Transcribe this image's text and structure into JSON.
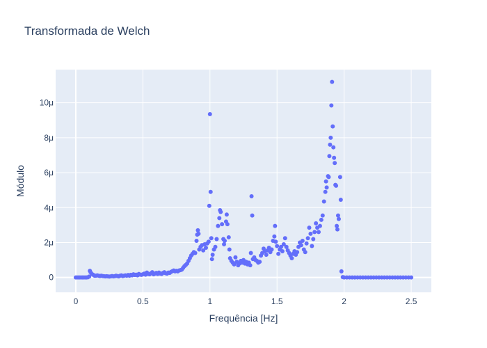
{
  "chart_data": {
    "type": "scatter",
    "title": "Transformada de Welch",
    "xlabel": "Frequência [Hz]",
    "ylabel": "Módulo",
    "xlim": [
      -0.15,
      2.65
    ],
    "ylim": [
      -0.85,
      11.9
    ],
    "y_unit_label": "μ",
    "grid": true,
    "legend": "none",
    "xticks": [
      {
        "value": 0,
        "label": "0"
      },
      {
        "value": 0.5,
        "label": "0.5"
      },
      {
        "value": 1,
        "label": "1"
      },
      {
        "value": 1.5,
        "label": "1.5"
      },
      {
        "value": 2,
        "label": "2"
      },
      {
        "value": 2.5,
        "label": "2.5"
      }
    ],
    "yticks": [
      {
        "value": 0,
        "label": "0"
      },
      {
        "value": 2,
        "label": "2μ"
      },
      {
        "value": 4,
        "label": "4μ"
      },
      {
        "value": 6,
        "label": "6μ"
      },
      {
        "value": 8,
        "label": "8μ"
      },
      {
        "value": 10,
        "label": "10μ"
      }
    ],
    "series": [
      {
        "color": "#636efa",
        "points": [
          [
            0.0,
            0.0
          ],
          [
            0.01,
            0.0
          ],
          [
            0.02,
            0.0
          ],
          [
            0.03,
            0.0
          ],
          [
            0.04,
            0.0
          ],
          [
            0.05,
            0.0
          ],
          [
            0.06,
            0.0
          ],
          [
            0.07,
            0.0
          ],
          [
            0.08,
            0.0
          ],
          [
            0.09,
            0.01
          ],
          [
            0.1,
            0.05
          ],
          [
            0.105,
            0.38
          ],
          [
            0.11,
            0.3
          ],
          [
            0.12,
            0.2
          ],
          [
            0.13,
            0.15
          ],
          [
            0.14,
            0.1
          ],
          [
            0.15,
            0.1
          ],
          [
            0.16,
            0.12
          ],
          [
            0.17,
            0.1
          ],
          [
            0.18,
            0.08
          ],
          [
            0.19,
            0.1
          ],
          [
            0.2,
            0.08
          ],
          [
            0.21,
            0.07
          ],
          [
            0.22,
            0.06
          ],
          [
            0.23,
            0.07
          ],
          [
            0.24,
            0.06
          ],
          [
            0.25,
            0.05
          ],
          [
            0.26,
            0.06
          ],
          [
            0.27,
            0.08
          ],
          [
            0.28,
            0.06
          ],
          [
            0.29,
            0.07
          ],
          [
            0.3,
            0.1
          ],
          [
            0.31,
            0.08
          ],
          [
            0.32,
            0.06
          ],
          [
            0.33,
            0.1
          ],
          [
            0.34,
            0.12
          ],
          [
            0.35,
            0.08
          ],
          [
            0.36,
            0.1
          ],
          [
            0.37,
            0.12
          ],
          [
            0.38,
            0.1
          ],
          [
            0.39,
            0.14
          ],
          [
            0.4,
            0.1
          ],
          [
            0.41,
            0.15
          ],
          [
            0.42,
            0.12
          ],
          [
            0.43,
            0.18
          ],
          [
            0.44,
            0.14
          ],
          [
            0.45,
            0.16
          ],
          [
            0.46,
            0.12
          ],
          [
            0.47,
            0.2
          ],
          [
            0.48,
            0.16
          ],
          [
            0.49,
            0.15
          ],
          [
            0.5,
            0.18
          ],
          [
            0.51,
            0.22
          ],
          [
            0.52,
            0.16
          ],
          [
            0.53,
            0.28
          ],
          [
            0.54,
            0.2
          ],
          [
            0.55,
            0.18
          ],
          [
            0.56,
            0.24
          ],
          [
            0.57,
            0.3
          ],
          [
            0.58,
            0.18
          ],
          [
            0.59,
            0.22
          ],
          [
            0.6,
            0.26
          ],
          [
            0.61,
            0.2
          ],
          [
            0.62,
            0.28
          ],
          [
            0.63,
            0.22
          ],
          [
            0.64,
            0.2
          ],
          [
            0.65,
            0.26
          ],
          [
            0.66,
            0.3
          ],
          [
            0.67,
            0.24
          ],
          [
            0.68,
            0.22
          ],
          [
            0.69,
            0.28
          ],
          [
            0.7,
            0.26
          ],
          [
            0.71,
            0.32
          ],
          [
            0.72,
            0.36
          ],
          [
            0.73,
            0.4
          ],
          [
            0.74,
            0.35
          ],
          [
            0.75,
            0.38
          ],
          [
            0.76,
            0.35
          ],
          [
            0.77,
            0.4
          ],
          [
            0.78,
            0.42
          ],
          [
            0.79,
            0.45
          ],
          [
            0.8,
            0.55
          ],
          [
            0.81,
            0.65
          ],
          [
            0.82,
            0.72
          ],
          [
            0.83,
            0.8
          ],
          [
            0.84,
            0.95
          ],
          [
            0.85,
            1.1
          ],
          [
            0.86,
            1.25
          ],
          [
            0.87,
            1.35
          ],
          [
            0.88,
            1.45
          ],
          [
            0.89,
            1.4
          ],
          [
            0.9,
            2.1
          ],
          [
            0.905,
            2.45
          ],
          [
            0.91,
            2.7
          ],
          [
            0.915,
            2.5
          ],
          [
            0.92,
            1.6
          ],
          [
            0.93,
            1.75
          ],
          [
            0.94,
            1.85
          ],
          [
            0.95,
            1.55
          ],
          [
            0.96,
            1.9
          ],
          [
            0.97,
            1.7
          ],
          [
            0.98,
            1.95
          ],
          [
            0.99,
            2.05
          ],
          [
            0.995,
            4.1
          ],
          [
            1.0,
            9.35
          ],
          [
            1.005,
            4.9
          ],
          [
            1.01,
            2.25
          ],
          [
            1.015,
            1.05
          ],
          [
            1.02,
            1.3
          ],
          [
            1.03,
            1.6
          ],
          [
            1.04,
            1.75
          ],
          [
            1.05,
            2.2
          ],
          [
            1.06,
            2.95
          ],
          [
            1.07,
            3.4
          ],
          [
            1.075,
            3.85
          ],
          [
            1.08,
            3.75
          ],
          [
            1.09,
            3.05
          ],
          [
            1.1,
            2.2
          ],
          [
            1.105,
            1.9
          ],
          [
            1.11,
            2.1
          ],
          [
            1.12,
            3.2
          ],
          [
            1.125,
            3.6
          ],
          [
            1.13,
            3.05
          ],
          [
            1.14,
            2.3
          ],
          [
            1.145,
            1.6
          ],
          [
            1.15,
            1.1
          ],
          [
            1.16,
            0.95
          ],
          [
            1.17,
            0.85
          ],
          [
            1.18,
            0.75
          ],
          [
            1.19,
            1.15
          ],
          [
            1.2,
            0.9
          ],
          [
            1.21,
            0.7
          ],
          [
            1.22,
            0.8
          ],
          [
            1.23,
            0.95
          ],
          [
            1.24,
            0.85
          ],
          [
            1.25,
            1.0
          ],
          [
            1.26,
            0.8
          ],
          [
            1.27,
            0.9
          ],
          [
            1.28,
            0.75
          ],
          [
            1.29,
            0.85
          ],
          [
            1.3,
            0.7
          ],
          [
            1.305,
            1.4
          ],
          [
            1.31,
            4.65
          ],
          [
            1.315,
            3.55
          ],
          [
            1.32,
            1.05
          ],
          [
            1.33,
            1.15
          ],
          [
            1.34,
            1.0
          ],
          [
            1.35,
            0.95
          ],
          [
            1.36,
            0.85
          ],
          [
            1.37,
            0.9
          ],
          [
            1.38,
            1.25
          ],
          [
            1.39,
            1.4
          ],
          [
            1.4,
            1.65
          ],
          [
            1.41,
            1.5
          ],
          [
            1.42,
            1.3
          ],
          [
            1.43,
            1.55
          ],
          [
            1.44,
            1.7
          ],
          [
            1.45,
            1.45
          ],
          [
            1.46,
            1.6
          ],
          [
            1.47,
            2.1
          ],
          [
            1.48,
            2.35
          ],
          [
            1.485,
            2.95
          ],
          [
            1.49,
            2.05
          ],
          [
            1.5,
            1.8
          ],
          [
            1.51,
            1.35
          ],
          [
            1.52,
            1.6
          ],
          [
            1.53,
            1.75
          ],
          [
            1.54,
            1.5
          ],
          [
            1.55,
            1.9
          ],
          [
            1.56,
            2.25
          ],
          [
            1.57,
            1.75
          ],
          [
            1.58,
            1.55
          ],
          [
            1.59,
            1.4
          ],
          [
            1.6,
            1.25
          ],
          [
            1.61,
            1.1
          ],
          [
            1.62,
            1.35
          ],
          [
            1.63,
            1.5
          ],
          [
            1.64,
            1.3
          ],
          [
            1.65,
            1.45
          ],
          [
            1.66,
            1.75
          ],
          [
            1.67,
            2.0
          ],
          [
            1.68,
            1.85
          ],
          [
            1.69,
            2.1
          ],
          [
            1.7,
            1.6
          ],
          [
            1.71,
            1.45
          ],
          [
            1.72,
            1.95
          ],
          [
            1.73,
            2.25
          ],
          [
            1.74,
            2.85
          ],
          [
            1.75,
            2.5
          ],
          [
            1.76,
            1.8
          ],
          [
            1.77,
            2.2
          ],
          [
            1.78,
            2.6
          ],
          [
            1.79,
            3.1
          ],
          [
            1.8,
            2.85
          ],
          [
            1.81,
            2.6
          ],
          [
            1.82,
            2.95
          ],
          [
            1.83,
            3.3
          ],
          [
            1.84,
            3.55
          ],
          [
            1.85,
            4.35
          ],
          [
            1.86,
            4.9
          ],
          [
            1.865,
            5.5
          ],
          [
            1.87,
            5.15
          ],
          [
            1.88,
            5.8
          ],
          [
            1.885,
            5.75
          ],
          [
            1.89,
            6.95
          ],
          [
            1.895,
            7.6
          ],
          [
            1.9,
            8.0
          ],
          [
            1.905,
            9.85
          ],
          [
            1.91,
            11.2
          ],
          [
            1.915,
            8.65
          ],
          [
            1.92,
            7.45
          ],
          [
            1.925,
            6.85
          ],
          [
            1.93,
            6.55
          ],
          [
            1.935,
            5.3
          ],
          [
            1.94,
            5.25
          ],
          [
            1.945,
            2.95
          ],
          [
            1.95,
            2.75
          ],
          [
            1.955,
            3.55
          ],
          [
            1.96,
            3.35
          ],
          [
            1.97,
            5.75
          ],
          [
            1.975,
            4.45
          ],
          [
            1.98,
            0.35
          ],
          [
            1.99,
            0.02
          ],
          [
            2.0,
            0.0
          ],
          [
            2.02,
            0.0
          ],
          [
            2.04,
            0.0
          ],
          [
            2.06,
            0.0
          ],
          [
            2.08,
            0.0
          ],
          [
            2.1,
            0.0
          ],
          [
            2.12,
            0.0
          ],
          [
            2.14,
            0.0
          ],
          [
            2.16,
            0.0
          ],
          [
            2.18,
            0.0
          ],
          [
            2.2,
            0.0
          ],
          [
            2.22,
            0.0
          ],
          [
            2.24,
            0.0
          ],
          [
            2.26,
            0.0
          ],
          [
            2.28,
            0.0
          ],
          [
            2.3,
            0.0
          ],
          [
            2.32,
            0.0
          ],
          [
            2.34,
            0.0
          ],
          [
            2.36,
            0.0
          ],
          [
            2.38,
            0.0
          ],
          [
            2.4,
            0.0
          ],
          [
            2.42,
            0.0
          ],
          [
            2.44,
            0.0
          ],
          [
            2.46,
            0.0
          ],
          [
            2.48,
            0.0
          ],
          [
            2.5,
            0.0
          ]
        ]
      }
    ]
  }
}
